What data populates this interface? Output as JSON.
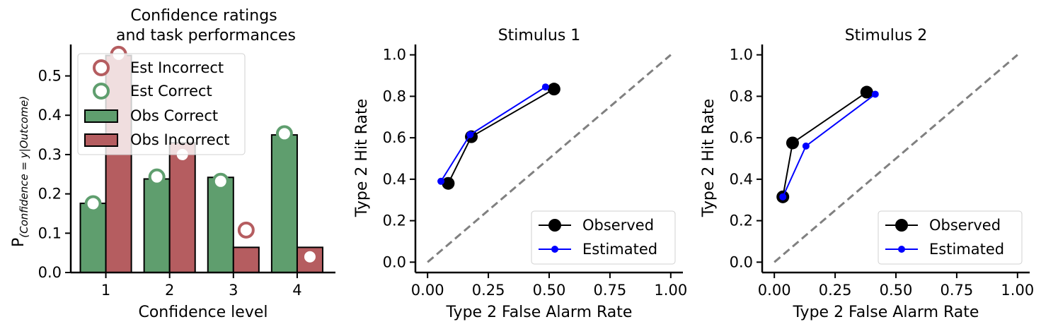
{
  "colors": {
    "correct": "#5f9e6e",
    "incorrect": "#b55d60",
    "observed": "#000000",
    "estimated": "#0000ff",
    "chance": "#808080"
  },
  "chart_data": [
    {
      "type": "bar",
      "title": "Confidence ratings\nand task performances",
      "xlabel": "Confidence level",
      "ylabel_prefix": "P",
      "ylabel_subscript": "(Confidence = y|Outcome)",
      "categories": [
        "1",
        "2",
        "3",
        "4"
      ],
      "ylim": [
        0,
        0.58
      ],
      "yticks": [
        0.0,
        0.1,
        0.2,
        0.3,
        0.4,
        0.5
      ],
      "ytick_labels": [
        "0.0",
        "0.1",
        "0.2",
        "0.3",
        "0.4",
        "0.5"
      ],
      "series": [
        {
          "name": "Obs Correct",
          "kind": "bar",
          "values": [
            0.176,
            0.238,
            0.242,
            0.35
          ]
        },
        {
          "name": "Obs Incorrect",
          "kind": "bar",
          "values": [
            0.552,
            0.33,
            0.064,
            0.064
          ]
        },
        {
          "name": "Est Correct",
          "kind": "marker",
          "values": [
            0.175,
            0.243,
            0.232,
            0.353
          ]
        },
        {
          "name": "Est Incorrect",
          "kind": "marker",
          "values": [
            0.555,
            0.3,
            0.108,
            0.04
          ]
        }
      ],
      "legend": {
        "placement": "upper-left",
        "entries": [
          "Est Incorrect",
          "Est Correct",
          "Obs Correct",
          "Obs Incorrect"
        ]
      }
    },
    {
      "type": "line",
      "title": "Stimulus 1",
      "xlabel": "Type 2 False Alarm Rate",
      "ylabel": "Type 2 Hit Rate",
      "xlim": [
        -0.05,
        1.05
      ],
      "ylim": [
        -0.05,
        1.05
      ],
      "xticks": [
        "0.00",
        "0.25",
        "0.50",
        "0.75",
        "1.00"
      ],
      "yticks": [
        "0.0",
        "0.2",
        "0.4",
        "0.6",
        "0.8",
        "1.0"
      ],
      "series": [
        {
          "name": "Observed",
          "x": [
            0.085,
            0.18,
            0.52
          ],
          "y": [
            0.38,
            0.605,
            0.835
          ]
        },
        {
          "name": "Estimated",
          "x": [
            0.055,
            0.175,
            0.485
          ],
          "y": [
            0.39,
            0.615,
            0.845
          ]
        }
      ],
      "chance_line": true,
      "legend": {
        "placement": "lower-right"
      }
    },
    {
      "type": "line",
      "title": "Stimulus 2",
      "xlabel": "Type 2 False Alarm Rate",
      "ylabel": "Type 2 Hit Rate",
      "xlim": [
        -0.05,
        1.05
      ],
      "ylim": [
        -0.05,
        1.05
      ],
      "xticks": [
        "0.00",
        "0.25",
        "0.50",
        "0.75",
        "1.00"
      ],
      "yticks": [
        "0.0",
        "0.2",
        "0.4",
        "0.6",
        "0.8",
        "1.0"
      ],
      "series": [
        {
          "name": "Observed",
          "x": [
            0.035,
            0.075,
            0.38
          ],
          "y": [
            0.315,
            0.575,
            0.82
          ]
        },
        {
          "name": "Estimated",
          "x": [
            0.035,
            0.13,
            0.415
          ],
          "y": [
            0.315,
            0.56,
            0.81
          ]
        }
      ],
      "chance_line": true,
      "legend": {
        "placement": "lower-right"
      }
    }
  ]
}
